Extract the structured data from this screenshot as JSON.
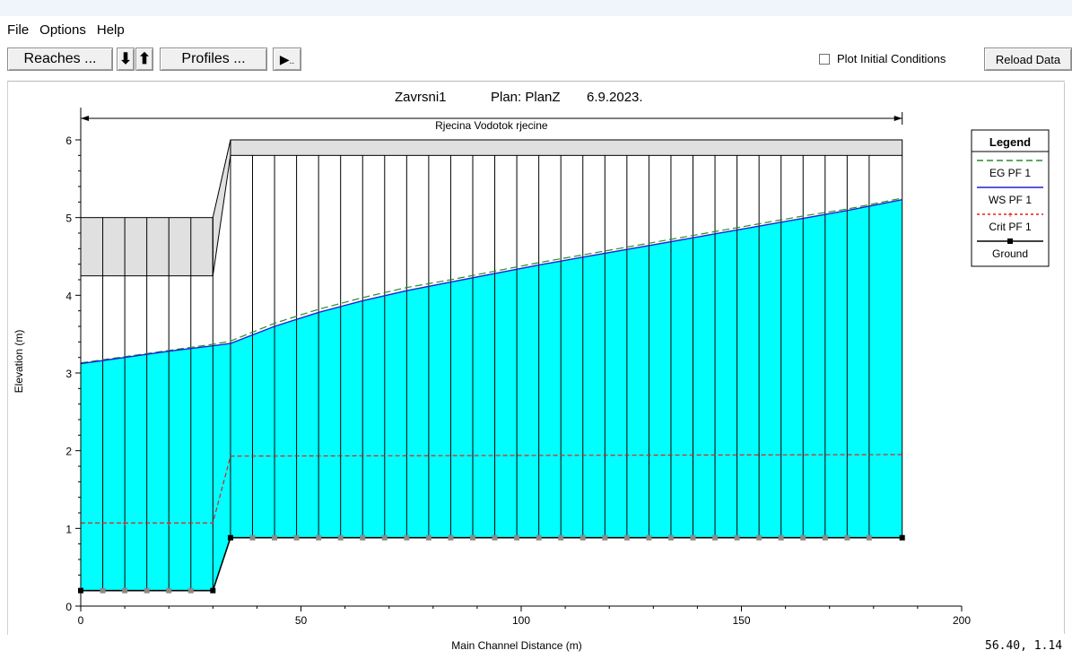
{
  "menu": [
    "File",
    "Options",
    "Help"
  ],
  "toolbar": {
    "reaches_label": "Reaches ...",
    "down_icon": "down-arrow-icon",
    "up_icon": "up-arrow-icon",
    "profiles_label": "Profiles ...",
    "play_icon": "play-icon",
    "plot_initial_label": "Plot Initial Conditions",
    "plot_initial_checked": false,
    "reload_label": "Reload Data"
  },
  "status": {
    "cursor_readout": "56.40, 1.14"
  },
  "chart_data": {
    "type": "line",
    "title_parts": [
      "Zavrsni1",
      "Plan: PlanZ",
      "6.9.2023."
    ],
    "reach_label": "Rjecina Vodotok rjecine",
    "xlabel": "Main Channel Distance (m)",
    "ylabel": "Elevation (m)",
    "xlim": [
      0,
      200
    ],
    "ylim": [
      0,
      6.3
    ],
    "xticks": [
      0,
      50,
      100,
      150,
      200
    ],
    "yticks": [
      0,
      1,
      2,
      3,
      4,
      5,
      6
    ],
    "legend": {
      "title": "Legend",
      "placement": "right",
      "entries": [
        "EG  PF 1",
        "WS  PF 1",
        "Crit  PF 1",
        "Ground"
      ]
    },
    "colors": {
      "water": "#00ffff",
      "eg": "#2a8c2a",
      "ws": "#2020d0",
      "crit": "#e02020",
      "ground": "#000000",
      "structure": "#e0e0e0"
    },
    "sections": [
      0,
      5,
      10,
      15,
      20,
      25,
      30,
      34,
      39,
      44,
      49,
      54,
      59,
      64,
      69,
      74,
      79,
      84,
      89,
      94,
      99,
      104,
      109,
      114,
      119,
      124,
      129,
      134,
      139,
      144,
      149,
      154,
      159,
      164,
      169,
      174,
      179,
      186.5
    ],
    "series": [
      {
        "name": "Ground",
        "x": [
          0,
          30,
          34,
          186.5
        ],
        "y": [
          0.2,
          0.2,
          0.88,
          0.88
        ]
      },
      {
        "name": "WS  PF 1",
        "x": [
          0,
          10,
          20,
          30,
          34,
          44,
          54,
          64,
          74,
          84,
          94,
          104,
          114,
          124,
          134,
          144,
          154,
          164,
          174,
          186.5
        ],
        "y": [
          3.12,
          3.2,
          3.28,
          3.35,
          3.38,
          3.6,
          3.78,
          3.93,
          4.06,
          4.17,
          4.28,
          4.39,
          4.49,
          4.59,
          4.69,
          4.79,
          4.89,
          4.99,
          5.09,
          5.23
        ]
      },
      {
        "name": "EG  PF 1",
        "x": [
          0,
          10,
          20,
          30,
          34,
          44,
          54,
          64,
          74,
          84,
          94,
          104,
          114,
          124,
          134,
          144,
          154,
          164,
          174,
          186.5
        ],
        "y": [
          3.13,
          3.21,
          3.29,
          3.37,
          3.41,
          3.64,
          3.82,
          3.97,
          4.1,
          4.2,
          4.31,
          4.42,
          4.52,
          4.62,
          4.72,
          4.82,
          4.92,
          5.02,
          5.11,
          5.25
        ]
      },
      {
        "name": "Crit  PF 1",
        "x": [
          0,
          30,
          34,
          186.5
        ],
        "y": [
          1.07,
          1.07,
          1.93,
          1.95
        ]
      }
    ],
    "structures": [
      {
        "x": [
          0,
          30
        ],
        "low": 4.25,
        "high": 5.0
      },
      {
        "x": [
          34,
          186.5
        ],
        "low": 5.8,
        "high": 6.0
      }
    ]
  }
}
